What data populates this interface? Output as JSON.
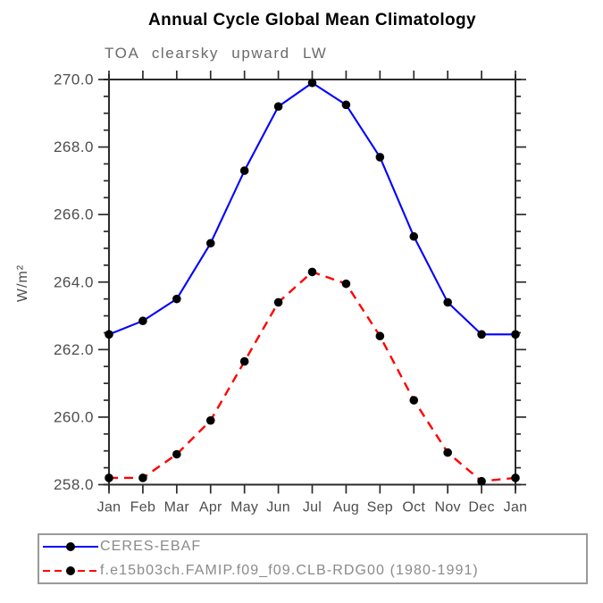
{
  "title": "Annual Cycle Global Mean Climatology",
  "subtitle": "TOA clearsky upward LW",
  "chart_data": {
    "type": "line",
    "x": [
      "Jan",
      "Feb",
      "Mar",
      "Apr",
      "May",
      "Jun",
      "Jul",
      "Aug",
      "Sep",
      "Oct",
      "Nov",
      "Dec",
      "Jan"
    ],
    "xlabel": "",
    "ylabel": "W/m²",
    "ylim": [
      258.0,
      270.0
    ],
    "y_major_interval": 2.0,
    "y_minor_interval": 0.5,
    "y_tick_labels": [
      "258.0",
      "260.0",
      "262.0",
      "264.0",
      "266.0",
      "268.0",
      "270.0"
    ],
    "grid": false,
    "legend_position": "bottom-left-box",
    "marker": {
      "shape": "circle",
      "color": "#000000",
      "radius": 4.8
    },
    "series": [
      {
        "name": "CERES-EBAF",
        "color": "#0000ff",
        "line_style": "solid",
        "values": [
          262.45,
          262.85,
          263.5,
          265.15,
          267.3,
          269.2,
          269.9,
          269.25,
          267.7,
          265.35,
          263.4,
          262.45,
          262.45
        ]
      },
      {
        "name": "f.e15b03ch.FAMIP.f09_f09.CLB-RDG00 (1980-1991)",
        "color": "#ff0000",
        "line_style": "dashed",
        "values": [
          258.2,
          258.2,
          258.9,
          259.9,
          261.65,
          263.4,
          264.3,
          263.95,
          262.4,
          260.5,
          258.95,
          258.1,
          258.2
        ]
      }
    ]
  },
  "colors": {
    "axis": "#2b2b2b",
    "tick_label": "#4d4d4d",
    "subtitle": "#6b6b6b",
    "legend_text": "#8a8a8a",
    "legend_border": "#9a9a9a",
    "background": "#ffffff"
  }
}
